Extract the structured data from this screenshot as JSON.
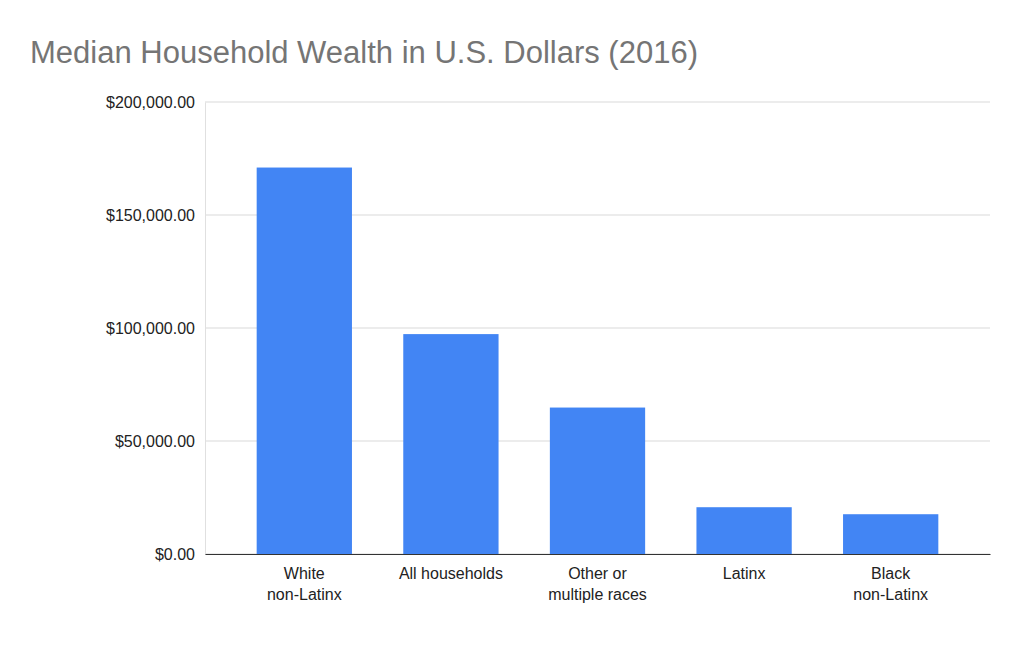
{
  "chart_data": {
    "type": "bar",
    "title": "Median Household Wealth in U.S. Dollars (2016)",
    "categories": [
      "White\nnon-Latinx",
      "All households",
      "Other or\nmultiple races",
      "Latinx",
      "Black\nnon-Latinx"
    ],
    "values": [
      171000,
      97300,
      64800,
      20700,
      17600
    ],
    "color": "#4285f4",
    "ylim": [
      0,
      200000
    ],
    "yticks": [
      {
        "value": 0,
        "label": "$0.00"
      },
      {
        "value": 50000,
        "label": "$50,000.00"
      },
      {
        "value": 100000,
        "label": "$100,000.00"
      },
      {
        "value": 150000,
        "label": "$150,000.00"
      },
      {
        "value": 200000,
        "label": "$200,000.00"
      }
    ],
    "grid": true
  }
}
